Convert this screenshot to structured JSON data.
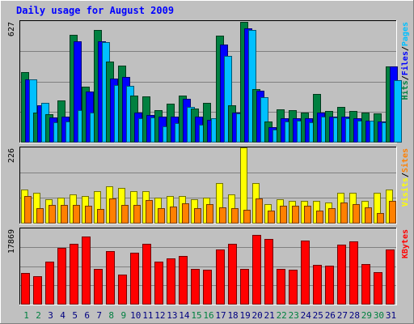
{
  "chart_data": {
    "type": "bar",
    "title": "Daily usage for August 2009",
    "days": [
      "1",
      "2",
      "3",
      "4",
      "5",
      "6",
      "7",
      "8",
      "9",
      "10",
      "11",
      "12",
      "13",
      "14",
      "15",
      "16",
      "17",
      "18",
      "19",
      "20",
      "21",
      "22",
      "23",
      "24",
      "25",
      "26",
      "27",
      "28",
      "29",
      "30",
      "31"
    ],
    "weekend_days": [
      1,
      2,
      8,
      9,
      15,
      16,
      22,
      23,
      29,
      30
    ],
    "panels": [
      {
        "id": "hits",
        "max_label": "627",
        "ymax": 627,
        "legend": [
          "Hits",
          "Files",
          "Pages"
        ],
        "series": [
          {
            "name": "Hits",
            "color": "#008040",
            "values": [
              360,
              150,
              145,
              215,
              556,
              285,
              582,
              415,
              395,
              240,
              235,
              165,
              197,
              240,
              173,
              200,
              552,
              190,
              623,
              272,
              105,
              170,
              164,
              153,
              250,
              162,
              183,
              158,
              152,
              149,
              390
            ]
          },
          {
            "name": "Files",
            "color": "#0000ff",
            "values": [
              324,
              190,
              127,
              130,
              520,
              262,
              521,
              330,
              335,
              150,
              140,
              130,
              130,
              225,
              131,
              112,
              505,
              153,
              590,
              265,
              75,
              120,
              121,
              120,
              150,
              130,
              130,
              120,
              110,
              105,
              390
            ]
          },
          {
            "name": "Pages",
            "color": "#00c0ff",
            "values": [
              324,
              203,
              99,
              104,
              165,
              152,
              519,
              294,
              290,
              123,
              125,
              79,
              95,
              180,
              90,
              120,
              446,
              147,
              580,
              230,
              65,
              105,
              110,
              100,
              130,
              125,
              120,
              110,
              110,
              100,
              320
            ]
          }
        ]
      },
      {
        "id": "visits",
        "max_label": "226",
        "ymax": 226,
        "legend": [
          "Visits",
          "Sites"
        ],
        "series": [
          {
            "name": "Visits",
            "color": "#ffff00",
            "values": [
              100,
              90,
              70,
              75,
              85,
              80,
              95,
              110,
              105,
              95,
              95,
              75,
              80,
              80,
              70,
              75,
              120,
              85,
              226,
              120,
              55,
              70,
              65,
              65,
              65,
              60,
              90,
              90,
              65,
              90,
              100
            ]
          },
          {
            "name": "Sites",
            "color": "#ff8000",
            "values": [
              81,
              44,
              54,
              54,
              53,
              52,
              41,
              72,
              54,
              54,
              67,
              44,
              48,
              59,
              44,
              56,
              45,
              44,
              40,
              73,
              37,
              52,
              52,
              52,
              37,
              44,
              60,
              57,
              45,
              30,
              65
            ]
          }
        ]
      },
      {
        "id": "kbytes",
        "max_label": "17869",
        "ymax": 17869,
        "legend": [
          "KBytes"
        ],
        "series": [
          {
            "name": "KBytes",
            "color": "#ff0000",
            "values": [
              7300,
              6600,
              9900,
              13300,
              14200,
              15900,
              8200,
              12500,
              6900,
              12200,
              14300,
              9900,
              10700,
              11400,
              8200,
              8100,
              12900,
              14300,
              8300,
              16400,
              15300,
              8300,
              8100,
              15000,
              9200,
              9100,
              14000,
              14700,
              9400,
              7400,
              12900
            ]
          }
        ]
      }
    ]
  }
}
